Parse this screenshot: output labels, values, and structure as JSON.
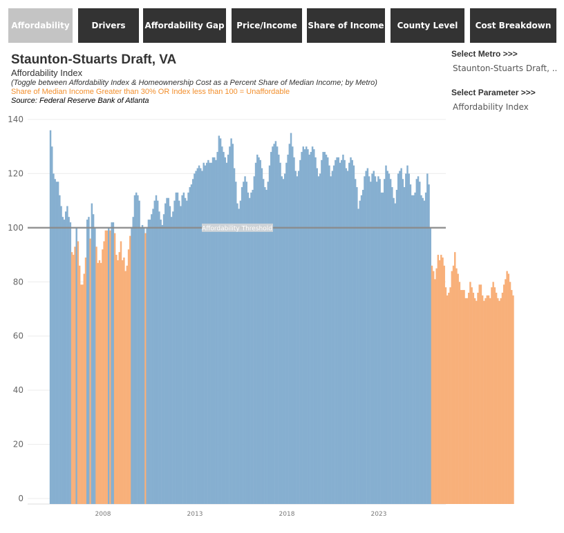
{
  "tabs": [
    {
      "label": "Affordability",
      "active": true
    },
    {
      "label": "Drivers",
      "active": false
    },
    {
      "label": "Affordability Gap",
      "active": false
    },
    {
      "label": "Price/Income",
      "active": false
    },
    {
      "label": "Share of Income",
      "active": false
    },
    {
      "label": "County Level",
      "active": false
    },
    {
      "label": "Cost Breakdown",
      "active": false
    }
  ],
  "header": {
    "title": "Staunton-Stuarts Draft, VA",
    "subtitle": "Affordability Index",
    "note": "(Toggle between Affordability Index & Homeownership Cost as a Percent Share of Median Income; by Metro)",
    "warning": "Share of Median Income Greater than 30% OR Index less than 100  = Unaffordable",
    "source": "Source: Federal Reserve Bank of Atlanta"
  },
  "controls": {
    "metro_label": "Select Metro >>>",
    "metro_value": "Staunton-Stuarts Draft, ..",
    "param_label": "Select Parameter >>>",
    "param_value": "Affordability Index"
  },
  "chart_data": {
    "type": "bar",
    "title": "Affordability Index",
    "xlabel": "",
    "ylabel": "",
    "ylim": [
      0,
      140
    ],
    "yticks": [
      0,
      20,
      40,
      60,
      80,
      100,
      120,
      140
    ],
    "xticks": [
      2008,
      2013,
      2018,
      2023
    ],
    "grid": true,
    "threshold": {
      "value": 100,
      "label": "Affordability Threshold"
    },
    "colors": {
      "affordable": "#86afd0",
      "unaffordable": "#f8b07a",
      "threshold": "#8a8a8a"
    },
    "start": "2005-01",
    "frequency": "monthly",
    "values": [
      136,
      130,
      120,
      118,
      117,
      117,
      112,
      108,
      104,
      103,
      106,
      108,
      104,
      102,
      91,
      90,
      93,
      100,
      95,
      86,
      79,
      79,
      83,
      89,
      103,
      104,
      96,
      109,
      105,
      100,
      93,
      87,
      88,
      87,
      92,
      95,
      99,
      99,
      100,
      99,
      102,
      102,
      98,
      90,
      88,
      91,
      95,
      88,
      89,
      84,
      86,
      92,
      97,
      100,
      104,
      112,
      113,
      112,
      110,
      100,
      101,
      100,
      98,
      100,
      103,
      103,
      105,
      107,
      110,
      112,
      110,
      106,
      103,
      101,
      105,
      109,
      111,
      111,
      108,
      104,
      106,
      110,
      113,
      113,
      110,
      108,
      112,
      113,
      111,
      110,
      113,
      115,
      116,
      118,
      120,
      121,
      122,
      123,
      122,
      121,
      124,
      123,
      124,
      125,
      124,
      124,
      126,
      126,
      125,
      128,
      134,
      133,
      130,
      128,
      126,
      124,
      127,
      130,
      133,
      131,
      122,
      117,
      109,
      107,
      110,
      115,
      117,
      119,
      117,
      113,
      111,
      113,
      114,
      119,
      124,
      127,
      126,
      125,
      122,
      118,
      115,
      114,
      117,
      123,
      128,
      130,
      131,
      132,
      130,
      127,
      124,
      119,
      118,
      120,
      124,
      127,
      131,
      135,
      130,
      126,
      121,
      119,
      121,
      125,
      128,
      130,
      129,
      130,
      129,
      127,
      128,
      130,
      129,
      126,
      122,
      119,
      120,
      125,
      128,
      128,
      127,
      126,
      123,
      119,
      121,
      123,
      125,
      126,
      126,
      124,
      125,
      127,
      125,
      122,
      121,
      124,
      126,
      125,
      123,
      118,
      115,
      107,
      110,
      112,
      114,
      119,
      121,
      122,
      119,
      117,
      120,
      121,
      119,
      117,
      119,
      118,
      113,
      113,
      118,
      123,
      121,
      120,
      118,
      115,
      111,
      109,
      114,
      120,
      121,
      122,
      118,
      115,
      120,
      123,
      120,
      116,
      112,
      112,
      113,
      118,
      119,
      117,
      112,
      111,
      110,
      113,
      120,
      116,
      100,
      86,
      84,
      81,
      85,
      90,
      88,
      90,
      89,
      86,
      78,
      75,
      76,
      78,
      84,
      86,
      91,
      85,
      83,
      80,
      77,
      77,
      77,
      74,
      74,
      76,
      80,
      78,
      76,
      74,
      73,
      76,
      79,
      79,
      75,
      73,
      74,
      75,
      75,
      74,
      78,
      80,
      78,
      76,
      74,
      73,
      74,
      76,
      79,
      81,
      84,
      83,
      80,
      77,
      75
    ]
  }
}
